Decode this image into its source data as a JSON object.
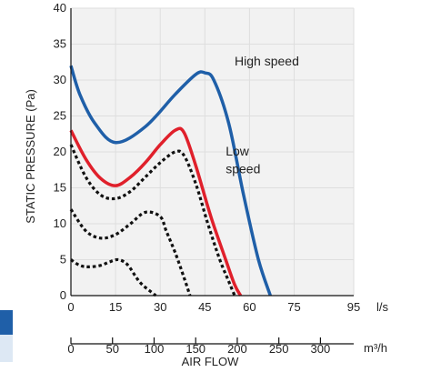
{
  "chart_data": {
    "type": "line",
    "title": "",
    "xlabel": "AIR FLOW",
    "ylabel": "STATIC PRESSURE (Pa)",
    "xunit": "l/s",
    "x2unit": "m³/h",
    "xlim": [
      0,
      95
    ],
    "ylim": [
      0,
      40
    ],
    "x_ticks": [
      "0",
      "15",
      "30",
      "45",
      "60",
      "75",
      "95"
    ],
    "x_tick_values": [
      0,
      15,
      30,
      45,
      60,
      75,
      95
    ],
    "y_ticks": [
      "0",
      "5",
      "10",
      "15",
      "20",
      "25",
      "30",
      "35",
      "40"
    ],
    "x2_ticks": [
      "0",
      "50",
      "100",
      "150",
      "200",
      "250",
      "300"
    ],
    "x2_tick_values": [
      0,
      50,
      100,
      150,
      200,
      250,
      300
    ],
    "grid": true,
    "colors": {
      "high": "#1f5fa8",
      "low": "#e0202b",
      "other": "#111111",
      "grid": "#dedede",
      "plot_bg": "#f2f2f2"
    },
    "series": [
      {
        "name": "High speed",
        "style": "solid",
        "color": "#1f5fa8",
        "x": [
          0,
          3,
          8,
          15,
          25,
          35,
          42,
          45,
          48,
          53,
          58,
          63,
          67
        ],
        "y": [
          32,
          28,
          24,
          21.3,
          23.5,
          28,
          30.8,
          31,
          30,
          24,
          14,
          5,
          0
        ]
      },
      {
        "name": "Low speed",
        "style": "solid",
        "color": "#e0202b",
        "x": [
          0,
          5,
          10,
          15,
          20,
          25,
          30,
          35,
          38,
          42,
          47,
          52,
          55,
          57
        ],
        "y": [
          23,
          19,
          16.3,
          15.3,
          16.5,
          18.5,
          21,
          23,
          22.7,
          18,
          11,
          5,
          1.5,
          0
        ]
      },
      {
        "style": "dotted",
        "color": "#111111",
        "x": [
          0,
          5,
          10,
          15,
          20,
          25,
          30,
          35,
          38,
          42,
          46,
          50,
          53,
          55
        ],
        "y": [
          21,
          16.5,
          14,
          13.5,
          14.5,
          16.5,
          18.5,
          20,
          19.5,
          15.5,
          10,
          5,
          2,
          0
        ]
      },
      {
        "style": "dotted",
        "color": "#111111",
        "x": [
          0,
          5,
          10,
          15,
          20,
          25,
          30,
          32,
          35,
          38,
          40
        ],
        "y": [
          12,
          9,
          8,
          8.5,
          10,
          11.6,
          11,
          9,
          6,
          2.5,
          0
        ]
      },
      {
        "style": "dotted",
        "color": "#111111",
        "x": [
          0,
          3,
          6,
          10,
          13,
          16,
          19,
          22,
          24,
          27,
          28.5
        ],
        "y": [
          5,
          4.2,
          4,
          4.2,
          4.7,
          5,
          4.3,
          2.5,
          1.5,
          0.5,
          0
        ]
      }
    ],
    "annotations": [
      {
        "text": "High speed",
        "x": 55,
        "y": 32
      },
      {
        "text": "Low",
        "x": 52,
        "y": 19.5
      },
      {
        "text": "speed",
        "x": 52,
        "y": 17
      }
    ]
  }
}
